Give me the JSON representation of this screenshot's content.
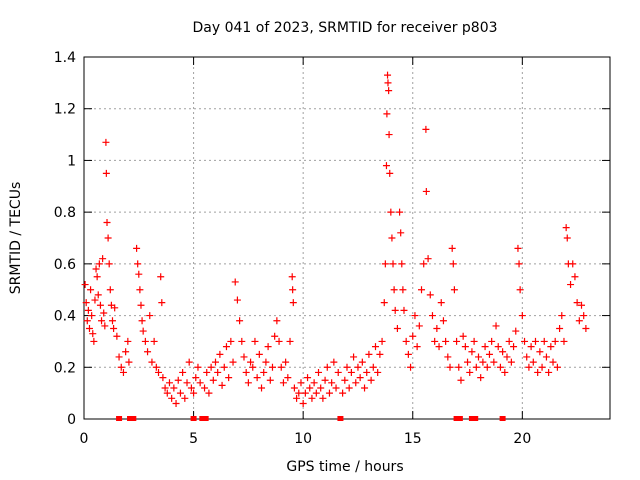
{
  "chart_data": {
    "type": "scatter",
    "title": "Day 041 of 2023, SRMTID for receiver p803",
    "xlabel": "GPS time / hours",
    "ylabel": "SRMTID / TECUs",
    "xlim": [
      0,
      24
    ],
    "ylim": [
      0,
      1.4
    ],
    "x_ticks": [
      0,
      5,
      10,
      15,
      20
    ],
    "x_tick_labels": [
      "0",
      "5",
      "10",
      "15",
      "20"
    ],
    "y_ticks": [
      0,
      0.2,
      0.4,
      0.6,
      0.8,
      1.0,
      1.2,
      1.4
    ],
    "y_tick_labels": [
      "0",
      "0.2",
      "0.4",
      "0.6",
      "0.8",
      "1",
      "1.2",
      "1.4"
    ],
    "grid": true,
    "marker": "+",
    "color": "#ff0000",
    "baseline_markers_x": [
      1.6,
      2.1,
      2.25,
      5.0,
      5.4,
      5.55,
      11.7,
      17.0,
      17.15,
      17.7,
      17.85,
      19.1
    ],
    "series": [
      {
        "name": "SRMTID",
        "points": [
          [
            0.05,
            0.52
          ],
          [
            0.1,
            0.45
          ],
          [
            0.15,
            0.38
          ],
          [
            0.2,
            0.42
          ],
          [
            0.25,
            0.35
          ],
          [
            0.3,
            0.5
          ],
          [
            0.35,
            0.4
          ],
          [
            0.4,
            0.33
          ],
          [
            0.45,
            0.3
          ],
          [
            0.5,
            0.46
          ],
          [
            0.55,
            0.58
          ],
          [
            0.6,
            0.55
          ],
          [
            0.65,
            0.48
          ],
          [
            0.7,
            0.6
          ],
          [
            0.75,
            0.44
          ],
          [
            0.8,
            0.38
          ],
          [
            0.85,
            0.62
          ],
          [
            0.9,
            0.41
          ],
          [
            0.95,
            0.36
          ],
          [
            1.0,
            1.07
          ],
          [
            1.02,
            0.95
          ],
          [
            1.05,
            0.76
          ],
          [
            1.1,
            0.7
          ],
          [
            1.15,
            0.6
          ],
          [
            1.2,
            0.5
          ],
          [
            1.25,
            0.44
          ],
          [
            1.3,
            0.38
          ],
          [
            1.35,
            0.35
          ],
          [
            1.4,
            0.43
          ],
          [
            1.5,
            0.32
          ],
          [
            1.6,
            0.24
          ],
          [
            1.7,
            0.2
          ],
          [
            1.8,
            0.18
          ],
          [
            1.9,
            0.26
          ],
          [
            2.0,
            0.3
          ],
          [
            2.05,
            0.22
          ],
          [
            2.4,
            0.66
          ],
          [
            2.45,
            0.6
          ],
          [
            2.5,
            0.56
          ],
          [
            2.55,
            0.5
          ],
          [
            2.6,
            0.44
          ],
          [
            2.65,
            0.38
          ],
          [
            2.7,
            0.34
          ],
          [
            2.8,
            0.3
          ],
          [
            2.9,
            0.26
          ],
          [
            3.0,
            0.4
          ],
          [
            3.1,
            0.22
          ],
          [
            3.2,
            0.3
          ],
          [
            3.3,
            0.2
          ],
          [
            3.4,
            0.18
          ],
          [
            3.5,
            0.55
          ],
          [
            3.55,
            0.45
          ],
          [
            3.6,
            0.16
          ],
          [
            3.7,
            0.12
          ],
          [
            3.8,
            0.1
          ],
          [
            3.9,
            0.14
          ],
          [
            4.0,
            0.08
          ],
          [
            4.1,
            0.12
          ],
          [
            4.2,
            0.06
          ],
          [
            4.3,
            0.15
          ],
          [
            4.4,
            0.1
          ],
          [
            4.5,
            0.18
          ],
          [
            4.6,
            0.08
          ],
          [
            4.7,
            0.14
          ],
          [
            4.8,
            0.22
          ],
          [
            4.9,
            0.12
          ],
          [
            5.0,
            0.1
          ],
          [
            5.1,
            0.16
          ],
          [
            5.2,
            0.2
          ],
          [
            5.3,
            0.14
          ],
          [
            5.5,
            0.12
          ],
          [
            5.6,
            0.18
          ],
          [
            5.7,
            0.1
          ],
          [
            5.8,
            0.2
          ],
          [
            5.9,
            0.15
          ],
          [
            6.0,
            0.22
          ],
          [
            6.1,
            0.18
          ],
          [
            6.2,
            0.25
          ],
          [
            6.3,
            0.13
          ],
          [
            6.4,
            0.2
          ],
          [
            6.5,
            0.28
          ],
          [
            6.6,
            0.16
          ],
          [
            6.7,
            0.3
          ],
          [
            6.8,
            0.22
          ],
          [
            6.9,
            0.53
          ],
          [
            7.0,
            0.46
          ],
          [
            7.1,
            0.38
          ],
          [
            7.2,
            0.3
          ],
          [
            7.3,
            0.24
          ],
          [
            7.4,
            0.18
          ],
          [
            7.5,
            0.14
          ],
          [
            7.6,
            0.22
          ],
          [
            7.7,
            0.2
          ],
          [
            7.8,
            0.3
          ],
          [
            7.9,
            0.16
          ],
          [
            8.0,
            0.25
          ],
          [
            8.1,
            0.12
          ],
          [
            8.2,
            0.18
          ],
          [
            8.3,
            0.22
          ],
          [
            8.4,
            0.28
          ],
          [
            8.5,
            0.15
          ],
          [
            8.6,
            0.2
          ],
          [
            8.7,
            0.32
          ],
          [
            8.8,
            0.38
          ],
          [
            8.9,
            0.3
          ],
          [
            9.0,
            0.2
          ],
          [
            9.1,
            0.14
          ],
          [
            9.2,
            0.22
          ],
          [
            9.3,
            0.16
          ],
          [
            9.4,
            0.3
          ],
          [
            9.5,
            0.55
          ],
          [
            9.52,
            0.5
          ],
          [
            9.55,
            0.45
          ],
          [
            9.6,
            0.12
          ],
          [
            9.7,
            0.08
          ],
          [
            9.8,
            0.1
          ],
          [
            9.9,
            0.14
          ],
          [
            10.0,
            0.06
          ],
          [
            10.1,
            0.1
          ],
          [
            10.2,
            0.16
          ],
          [
            10.3,
            0.12
          ],
          [
            10.4,
            0.08
          ],
          [
            10.5,
            0.14
          ],
          [
            10.6,
            0.1
          ],
          [
            10.7,
            0.18
          ],
          [
            10.8,
            0.12
          ],
          [
            10.9,
            0.08
          ],
          [
            11.0,
            0.15
          ],
          [
            11.1,
            0.2
          ],
          [
            11.2,
            0.1
          ],
          [
            11.3,
            0.14
          ],
          [
            11.4,
            0.22
          ],
          [
            11.5,
            0.12
          ],
          [
            11.6,
            0.18
          ],
          [
            11.8,
            0.1
          ],
          [
            11.9,
            0.15
          ],
          [
            12.0,
            0.2
          ],
          [
            12.1,
            0.12
          ],
          [
            12.2,
            0.18
          ],
          [
            12.3,
            0.24
          ],
          [
            12.4,
            0.14
          ],
          [
            12.5,
            0.2
          ],
          [
            12.6,
            0.16
          ],
          [
            12.7,
            0.22
          ],
          [
            12.8,
            0.12
          ],
          [
            12.9,
            0.18
          ],
          [
            13.0,
            0.25
          ],
          [
            13.1,
            0.15
          ],
          [
            13.2,
            0.2
          ],
          [
            13.3,
            0.28
          ],
          [
            13.4,
            0.18
          ],
          [
            13.5,
            0.25
          ],
          [
            13.6,
            0.3
          ],
          [
            13.7,
            0.45
          ],
          [
            13.75,
            0.6
          ],
          [
            13.8,
            0.98
          ],
          [
            13.82,
            1.18
          ],
          [
            13.85,
            1.33
          ],
          [
            13.87,
            1.3
          ],
          [
            13.9,
            1.27
          ],
          [
            13.92,
            1.1
          ],
          [
            13.95,
            0.95
          ],
          [
            14.0,
            0.8
          ],
          [
            14.05,
            0.7
          ],
          [
            14.1,
            0.6
          ],
          [
            14.15,
            0.5
          ],
          [
            14.2,
            0.42
          ],
          [
            14.3,
            0.35
          ],
          [
            14.4,
            0.8
          ],
          [
            14.45,
            0.72
          ],
          [
            14.5,
            0.6
          ],
          [
            14.55,
            0.5
          ],
          [
            14.6,
            0.42
          ],
          [
            14.7,
            0.3
          ],
          [
            14.8,
            0.25
          ],
          [
            14.9,
            0.2
          ],
          [
            15.0,
            0.32
          ],
          [
            15.1,
            0.4
          ],
          [
            15.2,
            0.28
          ],
          [
            15.3,
            0.36
          ],
          [
            15.4,
            0.5
          ],
          [
            15.5,
            0.6
          ],
          [
            15.6,
            1.12
          ],
          [
            15.62,
            0.88
          ],
          [
            15.7,
            0.62
          ],
          [
            15.8,
            0.48
          ],
          [
            15.9,
            0.4
          ],
          [
            16.0,
            0.3
          ],
          [
            16.1,
            0.35
          ],
          [
            16.2,
            0.28
          ],
          [
            16.3,
            0.45
          ],
          [
            16.4,
            0.38
          ],
          [
            16.5,
            0.3
          ],
          [
            16.6,
            0.24
          ],
          [
            16.7,
            0.2
          ],
          [
            16.8,
            0.66
          ],
          [
            16.85,
            0.6
          ],
          [
            16.9,
            0.5
          ],
          [
            17.0,
            0.3
          ],
          [
            17.1,
            0.2
          ],
          [
            17.2,
            0.15
          ],
          [
            17.3,
            0.32
          ],
          [
            17.4,
            0.28
          ],
          [
            17.5,
            0.22
          ],
          [
            17.6,
            0.18
          ],
          [
            17.7,
            0.26
          ],
          [
            17.8,
            0.3
          ],
          [
            17.9,
            0.2
          ],
          [
            18.0,
            0.24
          ],
          [
            18.1,
            0.16
          ],
          [
            18.2,
            0.22
          ],
          [
            18.3,
            0.28
          ],
          [
            18.4,
            0.2
          ],
          [
            18.5,
            0.25
          ],
          [
            18.6,
            0.3
          ],
          [
            18.7,
            0.22
          ],
          [
            18.8,
            0.36
          ],
          [
            18.9,
            0.28
          ],
          [
            19.0,
            0.2
          ],
          [
            19.1,
            0.26
          ],
          [
            19.2,
            0.18
          ],
          [
            19.3,
            0.24
          ],
          [
            19.4,
            0.3
          ],
          [
            19.5,
            0.22
          ],
          [
            19.6,
            0.28
          ],
          [
            19.7,
            0.34
          ],
          [
            19.8,
            0.66
          ],
          [
            19.85,
            0.6
          ],
          [
            19.9,
            0.5
          ],
          [
            20.0,
            0.4
          ],
          [
            20.1,
            0.3
          ],
          [
            20.2,
            0.24
          ],
          [
            20.3,
            0.2
          ],
          [
            20.4,
            0.28
          ],
          [
            20.5,
            0.22
          ],
          [
            20.6,
            0.3
          ],
          [
            20.7,
            0.18
          ],
          [
            20.8,
            0.26
          ],
          [
            20.9,
            0.2
          ],
          [
            21.0,
            0.3
          ],
          [
            21.1,
            0.24
          ],
          [
            21.2,
            0.18
          ],
          [
            21.3,
            0.28
          ],
          [
            21.4,
            0.22
          ],
          [
            21.5,
            0.3
          ],
          [
            21.6,
            0.2
          ],
          [
            21.7,
            0.35
          ],
          [
            21.8,
            0.4
          ],
          [
            21.9,
            0.3
          ],
          [
            22.0,
            0.74
          ],
          [
            22.05,
            0.7
          ],
          [
            22.1,
            0.6
          ],
          [
            22.2,
            0.52
          ],
          [
            22.3,
            0.6
          ],
          [
            22.4,
            0.55
          ],
          [
            22.5,
            0.45
          ],
          [
            22.6,
            0.38
          ],
          [
            22.7,
            0.44
          ],
          [
            22.8,
            0.4
          ],
          [
            22.9,
            0.35
          ]
        ]
      }
    ]
  }
}
